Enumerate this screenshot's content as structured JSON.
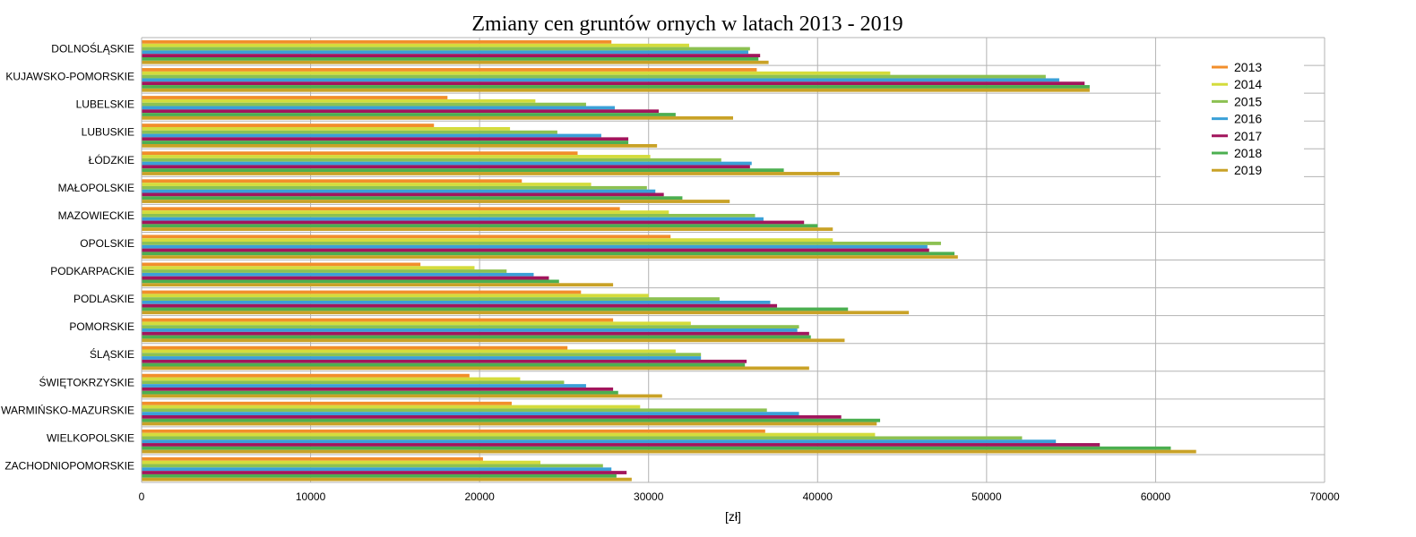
{
  "chart_data": {
    "type": "bar",
    "orientation": "horizontal",
    "title": "Zmiany cen gruntów ornych w latach 2013 - 2019",
    "xlabel": "[zł]",
    "ylabel": "",
    "xlim": [
      0,
      70000
    ],
    "x_ticks": [
      0,
      10000,
      20000,
      30000,
      40000,
      50000,
      60000,
      70000
    ],
    "grid": true,
    "legend_position": "right",
    "categories": [
      "DOLNOŚLĄSKIE",
      "KUJAWSKO-POMORSKIE",
      "LUBELSKIE",
      "LUBUSKIE",
      "ŁÓDZKIE",
      "MAŁOPOLSKIE",
      "MAZOWIECKIE",
      "OPOLSKIE",
      "PODKARPACKIE",
      "PODLASKIE",
      "POMORSKIE",
      "ŚLĄSKIE",
      "ŚWIĘTOKRZYSKIE",
      "WARMIŃSKO-MAZURSKIE",
      "WIELKOPOLSKIE",
      "ZACHODNIOPOMORSKIE"
    ],
    "series": [
      {
        "name": "2013",
        "color": "#f28e2b",
        "values": [
          27800,
          36400,
          18100,
          17300,
          25800,
          22500,
          28300,
          31300,
          16500,
          26000,
          27900,
          25200,
          19400,
          21900,
          36900,
          20200
        ]
      },
      {
        "name": "2014",
        "color": "#d4dc3c",
        "values": [
          32400,
          44300,
          23300,
          21800,
          30100,
          26600,
          31200,
          40900,
          19700,
          30000,
          32500,
          31600,
          22400,
          29500,
          43400,
          23600
        ]
      },
      {
        "name": "2015",
        "color": "#8cc152",
        "values": [
          36000,
          53500,
          26300,
          24600,
          34300,
          29900,
          36300,
          47300,
          21600,
          34200,
          38900,
          33100,
          25000,
          37000,
          52100,
          27300
        ]
      },
      {
        "name": "2016",
        "color": "#3aa0d8",
        "values": [
          35900,
          54300,
          28000,
          27200,
          36100,
          30400,
          36800,
          46500,
          23200,
          37200,
          38800,
          33100,
          26300,
          38900,
          54100,
          27800
        ]
      },
      {
        "name": "2017",
        "color": "#a2155c",
        "values": [
          36600,
          55800,
          30600,
          28800,
          36000,
          30900,
          39200,
          46600,
          24100,
          37600,
          39500,
          35800,
          27900,
          41400,
          56700,
          28700
        ]
      },
      {
        "name": "2018",
        "color": "#4caf50",
        "values": [
          36500,
          56100,
          31600,
          28800,
          38000,
          32000,
          40000,
          48100,
          24700,
          41800,
          39600,
          35700,
          28200,
          43700,
          60900,
          28100
        ]
      },
      {
        "name": "2019",
        "color": "#c9a227",
        "values": [
          37100,
          56100,
          35000,
          30500,
          41300,
          34800,
          40900,
          48300,
          27900,
          45400,
          41600,
          39500,
          30800,
          43500,
          62400,
          29000
        ]
      }
    ]
  }
}
